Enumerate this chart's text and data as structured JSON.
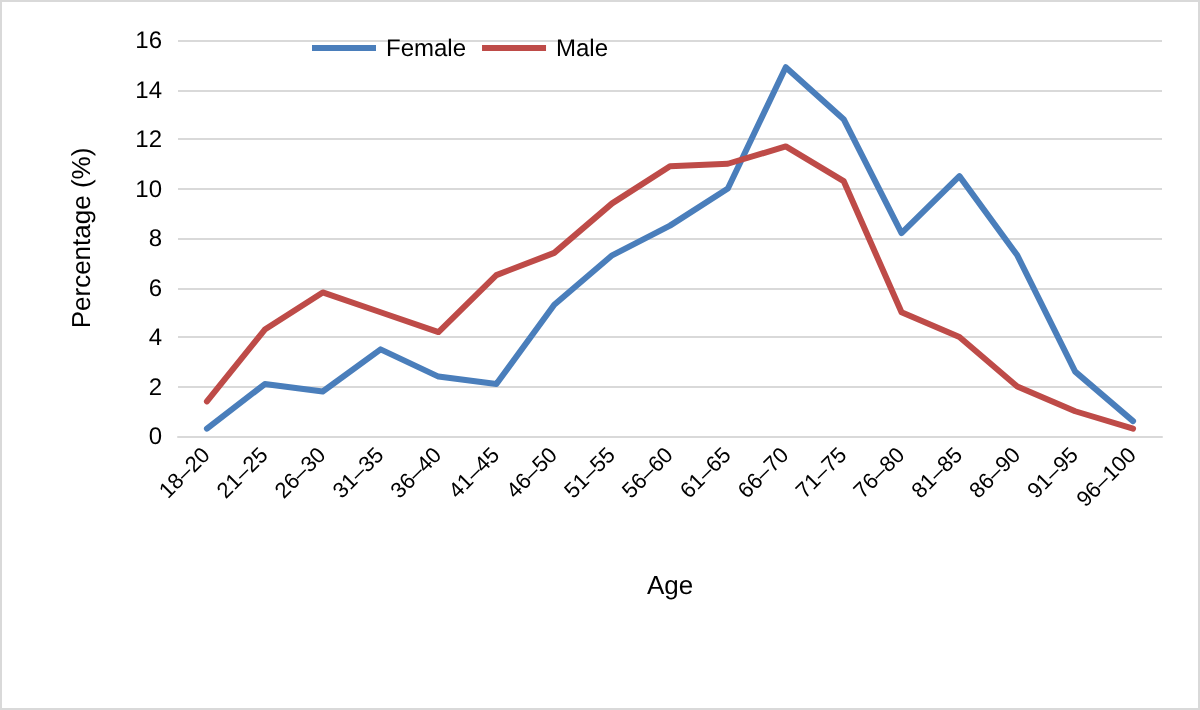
{
  "chart_data": {
    "type": "line",
    "xlabel": "Age",
    "ylabel": "Percentage (%)",
    "categories": [
      "18–20",
      "21–25",
      "26–30",
      "31–35",
      "36–40",
      "41–45",
      "46–50",
      "51–55",
      "56–60",
      "61–65",
      "66–70",
      "71–75",
      "76–80",
      "81–85",
      "86–90",
      "91–95",
      "96–100"
    ],
    "series": [
      {
        "name": "Female",
        "color": "#4a7ebb",
        "values": [
          0.3,
          2.1,
          1.8,
          3.5,
          2.4,
          2.1,
          5.3,
          7.3,
          8.5,
          10.0,
          14.9,
          12.8,
          8.2,
          10.5,
          7.3,
          2.6,
          0.6
        ]
      },
      {
        "name": "Male",
        "color": "#be4b48",
        "values": [
          1.4,
          4.3,
          5.8,
          5.0,
          4.2,
          6.5,
          7.4,
          9.4,
          10.9,
          11.0,
          11.7,
          10.3,
          5.0,
          4.0,
          2.0,
          1.0,
          0.3
        ]
      }
    ],
    "ylim": [
      0,
      16
    ],
    "yticks": [
      0,
      2,
      4,
      6,
      8,
      10,
      12,
      14,
      16
    ],
    "grid": "y",
    "legend": "top left",
    "marker": "none",
    "line_style": "solid"
  }
}
